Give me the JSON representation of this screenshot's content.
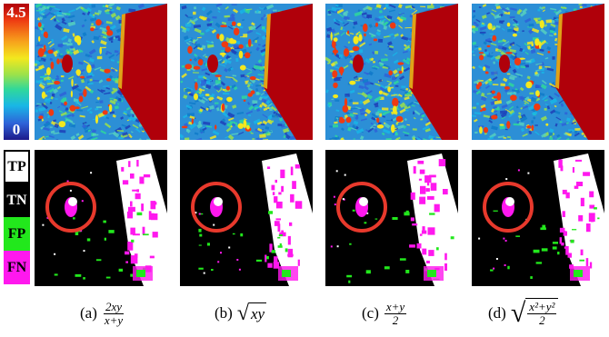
{
  "colorbar": {
    "max_label": "4.5",
    "min_label": "0",
    "colors": [
      "#b0000a",
      "#ee3a12",
      "#f7a31c",
      "#f3e81e",
      "#9ce24a",
      "#2fd89b",
      "#19b6e6",
      "#2e62d8",
      "#1d1a8a"
    ]
  },
  "legend": [
    {
      "label": "TP",
      "color": "#ffffff"
    },
    {
      "label": "TN",
      "color": "#000000"
    },
    {
      "label": "FP",
      "color": "#22e81c"
    },
    {
      "label": "FN",
      "color": "#ff18ee"
    }
  ],
  "panels": [
    {
      "tag": "(a)",
      "caption_parts": {
        "num": "2xy",
        "den": "x+y"
      }
    },
    {
      "tag": "(b)",
      "caption_parts": {
        "radicand": "xy"
      }
    },
    {
      "tag": "(c)",
      "caption_parts": {
        "num": "x+y",
        "den": "2"
      }
    },
    {
      "tag": "(d)",
      "caption_parts": {
        "num": "x²+y²",
        "den": "2"
      }
    }
  ],
  "highlight_color": "#e8392c"
}
